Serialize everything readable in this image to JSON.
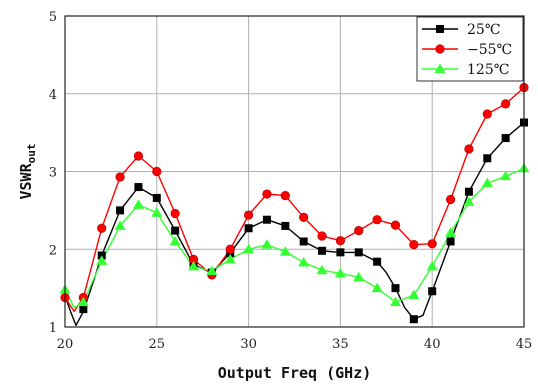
{
  "chart_data": {
    "type": "line",
    "title": "",
    "xlabel": "Output Freq (GHz)",
    "ylabel_main": "VSWR",
    "ylabel_sub": "out",
    "xlim": [
      20,
      45
    ],
    "ylim": [
      1,
      5
    ],
    "x_ticks": [
      20,
      25,
      30,
      35,
      40,
      45
    ],
    "y_ticks": [
      1,
      2,
      3,
      4,
      5
    ],
    "grid": true,
    "legend_position": "top-right",
    "series": [
      {
        "name": "25℃",
        "color": "#000000",
        "marker": "square",
        "marker_x": [
          21,
          22,
          23,
          24,
          25,
          26,
          27,
          28,
          29,
          30,
          31,
          32,
          33,
          34,
          35,
          36,
          37,
          38,
          39,
          40,
          41,
          42,
          43,
          44,
          45
        ],
        "marker_y": [
          1.23,
          1.92,
          2.5,
          2.8,
          2.66,
          2.24,
          1.8,
          1.7,
          1.95,
          2.27,
          2.38,
          2.3,
          2.1,
          1.98,
          1.96,
          1.96,
          1.84,
          1.5,
          1.1,
          1.46,
          2.1,
          2.74,
          3.17,
          3.43,
          3.63
        ],
        "curve_x": [
          20,
          20.3,
          20.6,
          21,
          21.5,
          22,
          23,
          24,
          25,
          26,
          27,
          28,
          29,
          30,
          31,
          32,
          33,
          34,
          35,
          36,
          37,
          37.5,
          38,
          38.5,
          39,
          39.5,
          40,
          41,
          42,
          43,
          44,
          45
        ],
        "curve_y": [
          1.4,
          1.2,
          1.02,
          1.2,
          1.55,
          1.92,
          2.5,
          2.8,
          2.66,
          2.24,
          1.8,
          1.7,
          1.95,
          2.27,
          2.38,
          2.3,
          2.1,
          1.98,
          1.96,
          1.96,
          1.84,
          1.7,
          1.5,
          1.25,
          1.1,
          1.15,
          1.46,
          2.1,
          2.74,
          3.17,
          3.43,
          3.63
        ]
      },
      {
        "name": "−55℃",
        "color": "#ff0000",
        "marker": "circle",
        "marker_x": [
          20,
          21,
          22,
          23,
          24,
          25,
          26,
          27,
          28,
          29,
          30,
          31,
          32,
          33,
          34,
          35,
          36,
          37,
          38,
          39,
          40,
          41,
          42,
          43,
          44,
          45
        ],
        "marker_y": [
          1.38,
          1.38,
          2.27,
          2.93,
          3.2,
          3.0,
          2.46,
          1.87,
          1.67,
          2.0,
          2.44,
          2.71,
          2.69,
          2.41,
          2.17,
          2.11,
          2.24,
          2.38,
          2.31,
          2.06,
          2.07,
          2.64,
          3.29,
          3.74,
          3.87,
          4.08
        ],
        "curve_x": [
          20,
          20.5,
          21,
          22,
          23,
          24,
          25,
          26,
          27,
          28,
          29,
          30,
          31,
          32,
          33,
          34,
          35,
          36,
          37,
          38,
          39,
          40,
          41,
          42,
          43,
          44,
          45
        ],
        "curve_y": [
          1.38,
          1.2,
          1.38,
          2.27,
          2.93,
          3.2,
          3.0,
          2.46,
          1.87,
          1.67,
          2.0,
          2.44,
          2.71,
          2.69,
          2.41,
          2.17,
          2.11,
          2.24,
          2.38,
          2.31,
          2.06,
          2.07,
          2.64,
          3.29,
          3.74,
          3.87,
          4.08
        ]
      },
      {
        "name": "125℃",
        "color": "#33ff33",
        "marker": "triangle",
        "marker_x": [
          20,
          21,
          22,
          23,
          24,
          25,
          26,
          27,
          28,
          29,
          30,
          31,
          32,
          33,
          34,
          35,
          36,
          37,
          38,
          39,
          40,
          41,
          42,
          43,
          44,
          45
        ],
        "marker_y": [
          1.48,
          1.32,
          1.85,
          2.3,
          2.57,
          2.47,
          2.1,
          1.78,
          1.72,
          1.87,
          2.0,
          2.06,
          1.97,
          1.83,
          1.73,
          1.69,
          1.64,
          1.5,
          1.32,
          1.41,
          1.78,
          2.21,
          2.61,
          2.85,
          2.94,
          3.04
        ],
        "curve_x": [
          20,
          20.5,
          21,
          22,
          23,
          24,
          25,
          26,
          27,
          28,
          29,
          30,
          31,
          32,
          33,
          34,
          35,
          36,
          37,
          38,
          39,
          40,
          41,
          42,
          43,
          44,
          45
        ],
        "curve_y": [
          1.48,
          1.25,
          1.32,
          1.85,
          2.3,
          2.57,
          2.47,
          2.1,
          1.78,
          1.72,
          1.87,
          2.0,
          2.06,
          1.97,
          1.83,
          1.73,
          1.69,
          1.64,
          1.5,
          1.32,
          1.41,
          1.78,
          2.21,
          2.61,
          2.85,
          2.94,
          3.04
        ]
      }
    ]
  }
}
